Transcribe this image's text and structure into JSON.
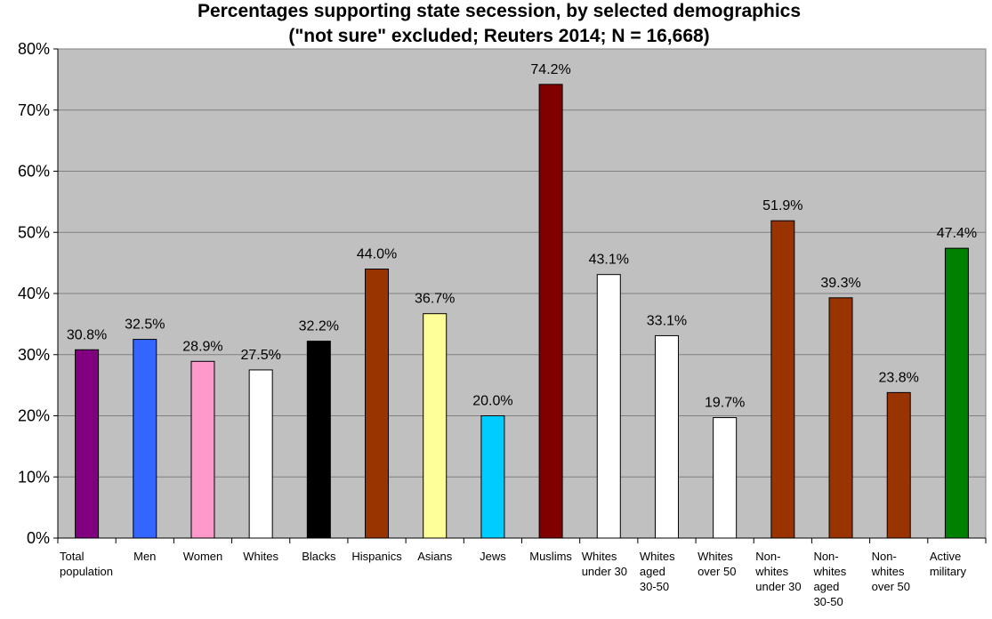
{
  "chart_data": {
    "type": "bar",
    "title": [
      "Percentages supporting state secession, by selected demographics",
      "(\"not sure\" excluded; Reuters 2014; N = 16,668)"
    ],
    "xlabel": "",
    "ylabel": "",
    "ylim": [
      0,
      80
    ],
    "yticks": [
      "0%",
      "10%",
      "20%",
      "30%",
      "40%",
      "50%",
      "60%",
      "70%",
      "80%"
    ],
    "grid": true,
    "legend": "none",
    "categories": [
      [
        "Total",
        "population"
      ],
      [
        "Men"
      ],
      [
        "Women"
      ],
      [
        "Whites"
      ],
      [
        "Blacks"
      ],
      [
        "Hispanics"
      ],
      [
        "Asians"
      ],
      [
        "Jews"
      ],
      [
        "Muslims"
      ],
      [
        "Whites",
        "under 30"
      ],
      [
        "Whites",
        "aged",
        "30-50"
      ],
      [
        "Whites",
        "over 50"
      ],
      [
        "Non-",
        "whites",
        "under 30"
      ],
      [
        "Non-",
        "whites",
        "aged",
        "30-50"
      ],
      [
        "Non-",
        "whites",
        "over 50"
      ],
      [
        "Active",
        "military"
      ]
    ],
    "values": [
      30.8,
      32.5,
      28.9,
      27.5,
      32.2,
      44.0,
      36.7,
      20.0,
      74.2,
      43.1,
      33.1,
      19.7,
      51.9,
      39.3,
      23.8,
      47.4
    ],
    "data_labels": [
      "30.8%",
      "32.5%",
      "28.9%",
      "27.5%",
      "32.2%",
      "44.0%",
      "36.7%",
      "20.0%",
      "74.2%",
      "43.1%",
      "33.1%",
      "19.7%",
      "51.9%",
      "39.3%",
      "23.8%",
      "47.4%"
    ],
    "colors": [
      "#800080",
      "#3366FF",
      "#FF99CC",
      "#FFFFFF",
      "#000000",
      "#993300",
      "#FFFF99",
      "#00CCFF",
      "#800000",
      "#FFFFFF",
      "#FFFFFF",
      "#FFFFFF",
      "#993300",
      "#993300",
      "#993300",
      "#008000"
    ],
    "plot_background": "#C0C0C0"
  }
}
